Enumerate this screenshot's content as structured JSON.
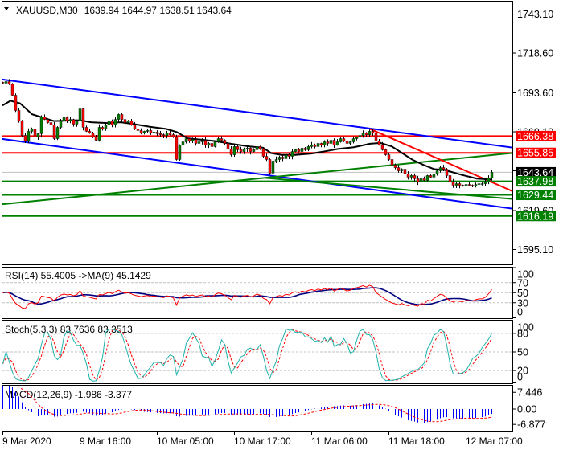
{
  "header": {
    "menu_icon": "triangle-down-icon",
    "symbol": "XAUUSD,M30",
    "open": "1639.94",
    "high": "1644.97",
    "low": "1638.51",
    "close": "1643.64"
  },
  "price_axis": {
    "ticks": [
      {
        "value": 1743.1,
        "label": "1743.10"
      },
      {
        "value": 1718.6,
        "label": "1718.60"
      },
      {
        "value": 1693.6,
        "label": "1693.60"
      },
      {
        "value": 1669.1,
        "label": "1669.10"
      },
      {
        "value": 1644.6,
        "label": "1644.60"
      },
      {
        "value": 1619.6,
        "label": "1619.60"
      },
      {
        "value": 1595.1,
        "label": "1595.10"
      }
    ],
    "tags": [
      {
        "value": 1666.38,
        "label": "1666.38",
        "bg": "#ff0000"
      },
      {
        "value": 1655.85,
        "label": "1655.85",
        "bg": "#ff0000"
      },
      {
        "value": 1643.64,
        "label": "1643.64",
        "bg": "#000000"
      },
      {
        "value": 1637.98,
        "label": "1637.98",
        "bg": "#008000"
      },
      {
        "value": 1629.44,
        "label": "1629.44",
        "bg": "#008000"
      },
      {
        "value": 1616.19,
        "label": "1616.19",
        "bg": "#008000"
      }
    ]
  },
  "time_axis": {
    "labels": [
      {
        "bar": 0,
        "label": "9 Mar 2020"
      },
      {
        "bar": 24,
        "label": "9 Mar 16:00"
      },
      {
        "bar": 48,
        "label": "10 Mar 05:00"
      },
      {
        "bar": 72,
        "label": "10 Mar 17:00"
      },
      {
        "bar": 96,
        "label": "11 Mar 06:00"
      },
      {
        "bar": 120,
        "label": "11 Mar 18:00"
      },
      {
        "bar": 144,
        "label": "12 Mar 07:00"
      }
    ]
  },
  "indicators": {
    "rsi": {
      "title": "RSI(14) 55.4005  ->MA(9) 45.1429",
      "axis_labels": [
        {
          "value": 100,
          "label": "100"
        },
        {
          "value": 70,
          "label": "70"
        },
        {
          "value": 50,
          "label": "50"
        },
        {
          "value": 30,
          "label": "30"
        },
        {
          "value": 0,
          "label": "0"
        }
      ],
      "levels": [
        70,
        50,
        30
      ]
    },
    "stoch": {
      "title": "Stoch(5,3,3) 83.7636 83.3513",
      "axis_labels": [
        {
          "value": 100,
          "label": "100"
        },
        {
          "value": 80,
          "label": "80"
        },
        {
          "value": 50,
          "label": "50"
        },
        {
          "value": 20,
          "label": "20"
        },
        {
          "value": 0,
          "label": "0"
        }
      ],
      "levels": [
        80,
        50,
        20
      ]
    },
    "macd": {
      "title": "MACD(12,26,9) -1.986 -3.377",
      "axis_labels": [
        {
          "value": 7.446,
          "label": "7.446"
        },
        {
          "value": 0,
          "label": "0.00"
        },
        {
          "value": -6.877,
          "label": "-6.877"
        }
      ]
    }
  },
  "colors": {
    "bull": "#008000",
    "bear": "#ff0000",
    "wick": "#000000",
    "ma": "#000000",
    "current_price_line": "#c0c0c0",
    "rsi": "#ff0000",
    "rsi_ma": "#000080",
    "stoch_main": "#20b2aa",
    "stoch_signal": "#ff0000",
    "macd_hist": "#0000ff",
    "macd_signal": "#ff0000"
  },
  "chart_data": {
    "type": "candlestick",
    "title": "XAUUSD,M30",
    "xlabel": "",
    "ylabel": "",
    "ylim": [
      1585.5,
      1750.7
    ],
    "grid": false,
    "first_open": 1700.2,
    "last_bar": {
      "o": 1639.94,
      "h": 1644.97,
      "l": 1638.51,
      "c": 1643.64
    },
    "closes": [
      1699.7,
      1700.7,
      1699.2,
      1692.1,
      1682.5,
      1675.9,
      1666.8,
      1663.3,
      1669.4,
      1670.9,
      1665.8,
      1667.9,
      1678.5,
      1676.9,
      1674.9,
      1673.4,
      1664.8,
      1671.9,
      1675.9,
      1678.0,
      1675.9,
      1676.9,
      1673.9,
      1675.9,
      1683.5,
      1671.9,
      1669.4,
      1668.4,
      1665.8,
      1663.8,
      1671.9,
      1670.9,
      1673.4,
      1675.9,
      1673.4,
      1676.9,
      1680.0,
      1676.9,
      1674.9,
      1675.9,
      1673.4,
      1670.9,
      1669.9,
      1668.4,
      1669.4,
      1669.9,
      1668.4,
      1668.9,
      1667.9,
      1667.3,
      1666.8,
      1668.4,
      1667.3,
      1665.8,
      1651.7,
      1660.8,
      1662.8,
      1664.8,
      1663.3,
      1664.3,
      1661.8,
      1662.8,
      1663.8,
      1660.8,
      1661.8,
      1659.8,
      1662.8,
      1664.8,
      1663.8,
      1661.8,
      1658.3,
      1654.7,
      1659.8,
      1657.8,
      1656.7,
      1658.3,
      1658.8,
      1656.7,
      1657.8,
      1659.8,
      1658.3,
      1653.7,
      1651.7,
      1643.1,
      1650.7,
      1651.7,
      1653.2,
      1652.2,
      1654.7,
      1653.7,
      1656.7,
      1657.8,
      1656.7,
      1658.8,
      1657.8,
      1659.8,
      1660.8,
      1659.8,
      1661.8,
      1660.8,
      1662.8,
      1661.8,
      1663.8,
      1660.8,
      1662.8,
      1664.8,
      1663.3,
      1661.8,
      1662.8,
      1664.8,
      1665.8,
      1666.8,
      1668.4,
      1667.3,
      1669.4,
      1668.4,
      1663.3,
      1660.8,
      1657.8,
      1654.7,
      1651.7,
      1648.2,
      1646.6,
      1644.6,
      1645.6,
      1642.6,
      1640.6,
      1641.6,
      1639.6,
      1637.6,
      1639.6,
      1638.6,
      1641.6,
      1640.6,
      1642.6,
      1644.6,
      1646.6,
      1645.6,
      1641.6,
      1637.6,
      1635.5,
      1636.5,
      1635.5,
      1635.0,
      1636.0,
      1635.5,
      1635.0,
      1636.0,
      1636.5,
      1636.5,
      1637.6,
      1639.94,
      1643.64
    ],
    "ma_line": [
      [
        0,
        1685.7
      ],
      [
        2.5,
        1688.6
      ],
      [
        5.5,
        1687.0
      ],
      [
        9.25,
        1680.1
      ],
      [
        16,
        1675.9
      ],
      [
        24.25,
        1676.4
      ],
      [
        27.5,
        1675.1
      ],
      [
        32.5,
        1674.6
      ],
      [
        36.75,
        1675.1
      ],
      [
        41,
        1673.9
      ],
      [
        46,
        1672.2
      ],
      [
        51,
        1670.9
      ],
      [
        54.25,
        1668.9
      ],
      [
        57.5,
        1665.0
      ],
      [
        66,
        1663.3
      ],
      [
        71,
        1661.6
      ],
      [
        76.75,
        1659.9
      ],
      [
        81,
        1659.1
      ],
      [
        83.5,
        1655.7
      ],
      [
        86.75,
        1654.6
      ],
      [
        91,
        1654.6
      ],
      [
        96,
        1655.4
      ],
      [
        101,
        1657.1
      ],
      [
        104.25,
        1658.3
      ],
      [
        109.25,
        1659.4
      ],
      [
        114.25,
        1661.6
      ],
      [
        117.5,
        1662.1
      ],
      [
        121,
        1659.9
      ],
      [
        124.25,
        1655.7
      ],
      [
        127.5,
        1651.5
      ],
      [
        131,
        1648.2
      ],
      [
        134.25,
        1645.6
      ],
      [
        137.5,
        1645.1
      ],
      [
        142.5,
        1642.2
      ],
      [
        147.5,
        1639.7
      ],
      [
        152,
        1639.1
      ]
    ],
    "horizontal_levels": [
      {
        "price": 1666.38,
        "color": "#ff0000",
        "name": "resistance-line-1666"
      },
      {
        "price": 1655.85,
        "color": "#ff0000",
        "name": "resistance-line-1655"
      },
      {
        "price": 1637.98,
        "color": "#008000",
        "name": "support-line-1637"
      },
      {
        "price": 1629.44,
        "color": "#008000",
        "name": "support-line-1629"
      },
      {
        "price": 1616.19,
        "color": "#008000",
        "name": "support-line-1616"
      }
    ],
    "current_price": 1643.64,
    "trendlines": [
      {
        "name": "channel-upper-line",
        "from": [
          -0.75,
          1702.2
        ],
        "to": [
          158.5,
          1659.2
        ],
        "color": "#0000ff"
      },
      {
        "name": "channel-lower-line",
        "from": [
          -0.75,
          1664.8
        ],
        "to": [
          158.5,
          1620.8
        ],
        "color": "#0000ff"
      },
      {
        "name": "rising-green-trendline",
        "from": [
          -0.75,
          1623.4
        ],
        "to": [
          158.5,
          1655.8
        ],
        "color": "#008000"
      },
      {
        "name": "falling-green-trendline",
        "from": [
          81.75,
          1640.1
        ],
        "to": [
          158.5,
          1626.9
        ],
        "color": "#008000"
      },
      {
        "name": "falling-red-trendline",
        "from": [
          114.25,
          1670.9
        ],
        "to": [
          158.5,
          1631.8
        ],
        "color": "#ff0000"
      }
    ],
    "rsi": {
      "period": 14,
      "ma_period": 9,
      "value": 55.4005,
      "ma_value": 45.1429,
      "ylim": [
        0,
        100
      ]
    },
    "stoch": {
      "k": 5,
      "d": 3,
      "slowing": 3,
      "main": 83.7636,
      "signal": 83.3513,
      "ylim": [
        0,
        100
      ]
    },
    "macd": {
      "fast": 12,
      "slow": 26,
      "signal_period": 9,
      "main": -1.986,
      "signal": -3.377,
      "ylim": [
        -6.877,
        7.446
      ]
    }
  }
}
